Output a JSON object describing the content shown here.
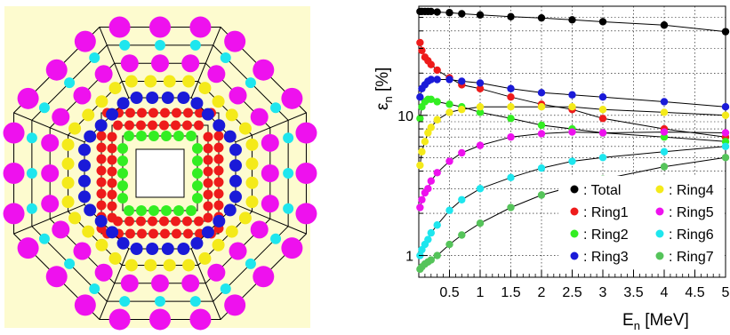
{
  "detector": {
    "panel_color": "#fdfbcf",
    "ring_colors": {
      "Ring1": "#ee1b1b",
      "Ring2": "#33ee22",
      "Ring3": "#1a1ad8",
      "Ring4": "#f4ea1a",
      "Ring5": "#ee11ee",
      "Ring6": "#1ee6ee",
      "Ring7": "#55c45a",
      "Total": "#000000"
    }
  },
  "chart_data": {
    "type": "scatter",
    "xlabel_main": "E",
    "xlabel_sub": "n",
    "xlabel_unit": " [MeV]",
    "ylabel_main": "ε",
    "ylabel_sub": "n",
    "ylabel_unit": " [%]",
    "xlim": [
      0,
      5
    ],
    "ylim": [
      0.7,
      60
    ],
    "yscale": "log",
    "grid": true,
    "legend_position": "bottom-right",
    "x_ticks": [
      "0.5",
      "1",
      "1.5",
      "2",
      "2.5",
      "3",
      "3.5",
      "4",
      "4.5",
      "5"
    ],
    "y_ticks": [
      "1",
      "10"
    ],
    "x": [
      0.02,
      0.05,
      0.1,
      0.15,
      0.2,
      0.3,
      0.5,
      0.7,
      1.0,
      1.5,
      2.0,
      2.5,
      3.0,
      4.0,
      5.0
    ],
    "series": [
      {
        "name": "Total",
        "color": "#000000",
        "values": [
          55,
          55,
          55,
          55,
          55,
          54.5,
          54,
          53,
          52,
          50.5,
          49.5,
          48,
          46.5,
          44,
          39.5
        ]
      },
      {
        "name": "Ring1",
        "color": "#ee1b1b",
        "values": [
          33,
          29,
          26,
          24.5,
          23,
          21,
          18.5,
          16.5,
          15.5,
          13.5,
          12,
          11,
          9.5,
          8,
          7
        ]
      },
      {
        "name": "Ring2",
        "color": "#33ee22",
        "values": [
          9.5,
          11.5,
          12.5,
          13,
          13,
          12.5,
          12,
          11.5,
          10.5,
          9.5,
          8.5,
          8,
          7.5,
          7,
          6.5
        ]
      },
      {
        "name": "Ring3",
        "color": "#1a1ad8",
        "values": [
          13.5,
          15.5,
          16.5,
          17.5,
          18,
          18,
          18,
          17.5,
          17,
          15.5,
          14.5,
          14,
          13.5,
          12.5,
          11.5
        ]
      },
      {
        "name": "Ring4",
        "color": "#f4ea1a",
        "values": [
          4.4,
          5.5,
          6.5,
          7.5,
          8.2,
          9.3,
          10.5,
          11,
          11.5,
          11.5,
          11.5,
          11.5,
          11,
          10.5,
          10
        ]
      },
      {
        "name": "Ring5",
        "color": "#ee11ee",
        "values": [
          2.2,
          2.5,
          2.8,
          3.0,
          3.4,
          3.9,
          4.7,
          5.4,
          6.1,
          7.0,
          7.4,
          7.6,
          7.5,
          7.6,
          7.5
        ]
      },
      {
        "name": "Ring6",
        "color": "#1ee6ee",
        "values": [
          1.0,
          1.1,
          1.2,
          1.3,
          1.45,
          1.65,
          2.1,
          2.5,
          3.0,
          3.6,
          4.2,
          4.7,
          5.0,
          5.5,
          6.0
        ]
      },
      {
        "name": "Ring7",
        "color": "#55c45a",
        "values": [
          0.8,
          0.83,
          0.87,
          0.9,
          0.93,
          1.0,
          1.2,
          1.4,
          1.7,
          2.2,
          2.7,
          3.1,
          3.5,
          4.3,
          5.0
        ]
      }
    ],
    "legend_labels": {
      "Total": ": Total",
      "Ring1": ": Ring1",
      "Ring2": ": Ring2",
      "Ring3": ": Ring3",
      "Ring4": ": Ring4",
      "Ring5": ": Ring5",
      "Ring6": ": Ring6",
      "Ring7": ": Ring7"
    }
  }
}
